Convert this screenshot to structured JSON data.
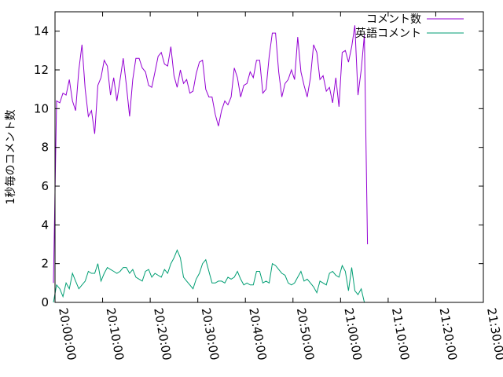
{
  "chart_data": {
    "type": "line",
    "title": "",
    "xlabel": "",
    "ylabel": "1秒毎のコメント数",
    "xlim": [
      "20:00:00",
      "21:30:00"
    ],
    "ylim": [
      0,
      15
    ],
    "x_ticks": [
      "20:00:00",
      "20:10:00",
      "20:20:00",
      "20:30:00",
      "20:40:00",
      "20:50:00",
      "21:00:00",
      "21:10:00",
      "21:20:00",
      "21:30:00"
    ],
    "y_ticks": [
      "0",
      "2",
      "4",
      "6",
      "8",
      "10",
      "12",
      "14"
    ],
    "grid": false,
    "legend_position": "top-right",
    "series": [
      {
        "name": "コメント数",
        "color": "#9400d3",
        "points": [
          [
            "19:59:40",
            1.0
          ],
          [
            "20:00:20",
            10.4
          ],
          [
            "20:01:00",
            10.3
          ],
          [
            "20:01:40",
            10.8
          ],
          [
            "20:02:20",
            10.7
          ],
          [
            "20:03:00",
            11.5
          ],
          [
            "20:03:40",
            10.4
          ],
          [
            "20:04:20",
            9.9
          ],
          [
            "20:05:00",
            12.0
          ],
          [
            "20:05:40",
            13.3
          ],
          [
            "20:06:20",
            11.0
          ],
          [
            "20:07:00",
            9.6
          ],
          [
            "20:07:40",
            9.9
          ],
          [
            "20:08:20",
            8.7
          ],
          [
            "20:09:00",
            11.2
          ],
          [
            "20:09:40",
            11.6
          ],
          [
            "20:10:20",
            12.5
          ],
          [
            "20:11:00",
            12.2
          ],
          [
            "20:11:40",
            10.7
          ],
          [
            "20:12:20",
            11.6
          ],
          [
            "20:13:00",
            10.4
          ],
          [
            "20:13:40",
            11.5
          ],
          [
            "20:14:20",
            12.6
          ],
          [
            "20:15:00",
            11.2
          ],
          [
            "20:15:40",
            9.6
          ],
          [
            "20:16:20",
            11.5
          ],
          [
            "20:17:00",
            12.6
          ],
          [
            "20:17:40",
            12.6
          ],
          [
            "20:18:20",
            12.1
          ],
          [
            "20:19:00",
            11.9
          ],
          [
            "20:19:40",
            11.2
          ],
          [
            "20:20:20",
            11.1
          ],
          [
            "20:21:00",
            11.9
          ],
          [
            "20:21:40",
            12.7
          ],
          [
            "20:22:20",
            12.9
          ],
          [
            "20:23:00",
            12.3
          ],
          [
            "20:23:40",
            12.2
          ],
          [
            "20:24:20",
            13.2
          ],
          [
            "20:25:00",
            11.7
          ],
          [
            "20:25:40",
            11.1
          ],
          [
            "20:26:20",
            12.0
          ],
          [
            "20:27:00",
            11.3
          ],
          [
            "20:27:40",
            11.5
          ],
          [
            "20:28:20",
            10.8
          ],
          [
            "20:29:00",
            10.9
          ],
          [
            "20:29:40",
            11.8
          ],
          [
            "20:30:20",
            12.4
          ],
          [
            "20:31:00",
            12.5
          ],
          [
            "20:31:40",
            11.0
          ],
          [
            "20:32:20",
            10.6
          ],
          [
            "20:33:00",
            10.6
          ],
          [
            "20:33:40",
            9.7
          ],
          [
            "20:34:20",
            9.1
          ],
          [
            "20:35:00",
            9.9
          ],
          [
            "20:35:40",
            10.4
          ],
          [
            "20:36:20",
            10.2
          ],
          [
            "20:37:00",
            10.6
          ],
          [
            "20:37:40",
            12.1
          ],
          [
            "20:38:20",
            11.6
          ],
          [
            "20:39:00",
            10.6
          ],
          [
            "20:39:40",
            11.2
          ],
          [
            "20:40:20",
            11.3
          ],
          [
            "20:41:00",
            11.9
          ],
          [
            "20:41:40",
            11.6
          ],
          [
            "20:42:20",
            12.5
          ],
          [
            "20:43:00",
            12.5
          ],
          [
            "20:43:40",
            10.8
          ],
          [
            "20:44:20",
            11.0
          ],
          [
            "20:45:00",
            12.7
          ],
          [
            "20:45:40",
            13.9
          ],
          [
            "20:46:20",
            13.9
          ],
          [
            "20:47:00",
            11.9
          ],
          [
            "20:47:40",
            10.6
          ],
          [
            "20:48:20",
            11.3
          ],
          [
            "20:49:00",
            11.5
          ],
          [
            "20:49:40",
            12.0
          ],
          [
            "20:50:20",
            11.5
          ],
          [
            "20:51:00",
            13.7
          ],
          [
            "20:51:40",
            11.9
          ],
          [
            "20:52:20",
            11.2
          ],
          [
            "20:53:00",
            10.6
          ],
          [
            "20:53:40",
            11.6
          ],
          [
            "20:54:20",
            13.3
          ],
          [
            "20:55:00",
            12.9
          ],
          [
            "20:55:40",
            11.5
          ],
          [
            "20:56:20",
            11.7
          ],
          [
            "20:57:00",
            10.9
          ],
          [
            "20:57:40",
            11.1
          ],
          [
            "20:58:20",
            10.3
          ],
          [
            "20:59:00",
            11.6
          ],
          [
            "20:59:40",
            10.1
          ],
          [
            "21:00:20",
            12.9
          ],
          [
            "21:01:00",
            13.0
          ],
          [
            "21:01:40",
            12.4
          ],
          [
            "21:02:20",
            13.2
          ],
          [
            "21:03:00",
            14.3
          ],
          [
            "21:03:40",
            10.7
          ],
          [
            "21:04:20",
            12.0
          ],
          [
            "21:05:00",
            13.8
          ],
          [
            "21:05:40",
            3.0
          ]
        ]
      },
      {
        "name": "英語コメント",
        "color": "#009e73",
        "points": [
          [
            "19:59:40",
            0.0
          ],
          [
            "20:00:20",
            0.9
          ],
          [
            "20:01:00",
            0.7
          ],
          [
            "20:01:40",
            0.3
          ],
          [
            "20:02:20",
            1.0
          ],
          [
            "20:03:00",
            0.7
          ],
          [
            "20:03:40",
            1.5
          ],
          [
            "20:04:20",
            1.1
          ],
          [
            "20:05:00",
            0.7
          ],
          [
            "20:05:40",
            0.9
          ],
          [
            "20:06:20",
            1.1
          ],
          [
            "20:07:00",
            1.6
          ],
          [
            "20:07:40",
            1.5
          ],
          [
            "20:08:20",
            1.5
          ],
          [
            "20:09:00",
            2.0
          ],
          [
            "20:09:40",
            1.1
          ],
          [
            "20:10:20",
            1.5
          ],
          [
            "20:11:00",
            1.8
          ],
          [
            "20:11:40",
            1.7
          ],
          [
            "20:12:20",
            1.6
          ],
          [
            "20:13:00",
            1.5
          ],
          [
            "20:13:40",
            1.6
          ],
          [
            "20:14:20",
            1.8
          ],
          [
            "20:15:00",
            1.8
          ],
          [
            "20:15:40",
            1.5
          ],
          [
            "20:16:20",
            1.7
          ],
          [
            "20:17:00",
            1.3
          ],
          [
            "20:17:40",
            1.2
          ],
          [
            "20:18:20",
            1.1
          ],
          [
            "20:19:00",
            1.6
          ],
          [
            "20:19:40",
            1.7
          ],
          [
            "20:20:20",
            1.3
          ],
          [
            "20:21:00",
            1.5
          ],
          [
            "20:21:40",
            1.4
          ],
          [
            "20:22:20",
            1.3
          ],
          [
            "20:23:00",
            1.7
          ],
          [
            "20:23:40",
            1.5
          ],
          [
            "20:24:20",
            2.0
          ],
          [
            "20:25:00",
            2.3
          ],
          [
            "20:25:40",
            2.7
          ],
          [
            "20:26:20",
            2.3
          ],
          [
            "20:27:00",
            1.3
          ],
          [
            "20:27:40",
            1.1
          ],
          [
            "20:28:20",
            0.9
          ],
          [
            "20:29:00",
            0.7
          ],
          [
            "20:29:40",
            1.2
          ],
          [
            "20:30:20",
            1.5
          ],
          [
            "20:31:00",
            2.0
          ],
          [
            "20:31:40",
            2.2
          ],
          [
            "20:32:20",
            1.6
          ],
          [
            "20:33:00",
            1.0
          ],
          [
            "20:33:40",
            1.0
          ],
          [
            "20:34:20",
            1.1
          ],
          [
            "20:35:00",
            1.1
          ],
          [
            "20:35:40",
            1.0
          ],
          [
            "20:36:20",
            1.3
          ],
          [
            "20:37:00",
            1.2
          ],
          [
            "20:37:40",
            1.3
          ],
          [
            "20:38:20",
            1.6
          ],
          [
            "20:39:00",
            1.2
          ],
          [
            "20:39:40",
            0.9
          ],
          [
            "20:40:20",
            1.0
          ],
          [
            "20:41:00",
            0.9
          ],
          [
            "20:41:40",
            0.9
          ],
          [
            "20:42:20",
            1.6
          ],
          [
            "20:43:00",
            1.6
          ],
          [
            "20:43:40",
            1.0
          ],
          [
            "20:44:20",
            1.1
          ],
          [
            "20:45:00",
            1.0
          ],
          [
            "20:45:40",
            2.0
          ],
          [
            "20:46:20",
            1.9
          ],
          [
            "20:47:00",
            1.7
          ],
          [
            "20:47:40",
            1.5
          ],
          [
            "20:48:20",
            1.4
          ],
          [
            "20:49:00",
            1.0
          ],
          [
            "20:49:40",
            0.9
          ],
          [
            "20:50:20",
            1.0
          ],
          [
            "20:51:00",
            1.3
          ],
          [
            "20:51:40",
            1.6
          ],
          [
            "20:52:20",
            1.1
          ],
          [
            "20:53:00",
            1.2
          ],
          [
            "20:53:40",
            1.0
          ],
          [
            "20:54:20",
            0.8
          ],
          [
            "20:55:00",
            0.5
          ],
          [
            "20:55:40",
            1.1
          ],
          [
            "20:56:20",
            1.0
          ],
          [
            "20:57:00",
            0.9
          ],
          [
            "20:57:40",
            1.5
          ],
          [
            "20:58:20",
            1.6
          ],
          [
            "20:59:00",
            1.4
          ],
          [
            "20:59:40",
            1.3
          ],
          [
            "21:00:20",
            1.9
          ],
          [
            "21:01:00",
            1.6
          ],
          [
            "21:01:40",
            0.6
          ],
          [
            "21:02:20",
            1.8
          ],
          [
            "21:03:00",
            0.6
          ],
          [
            "21:03:40",
            0.4
          ],
          [
            "21:04:20",
            0.7
          ],
          [
            "21:05:00",
            0.0
          ]
        ]
      }
    ]
  }
}
